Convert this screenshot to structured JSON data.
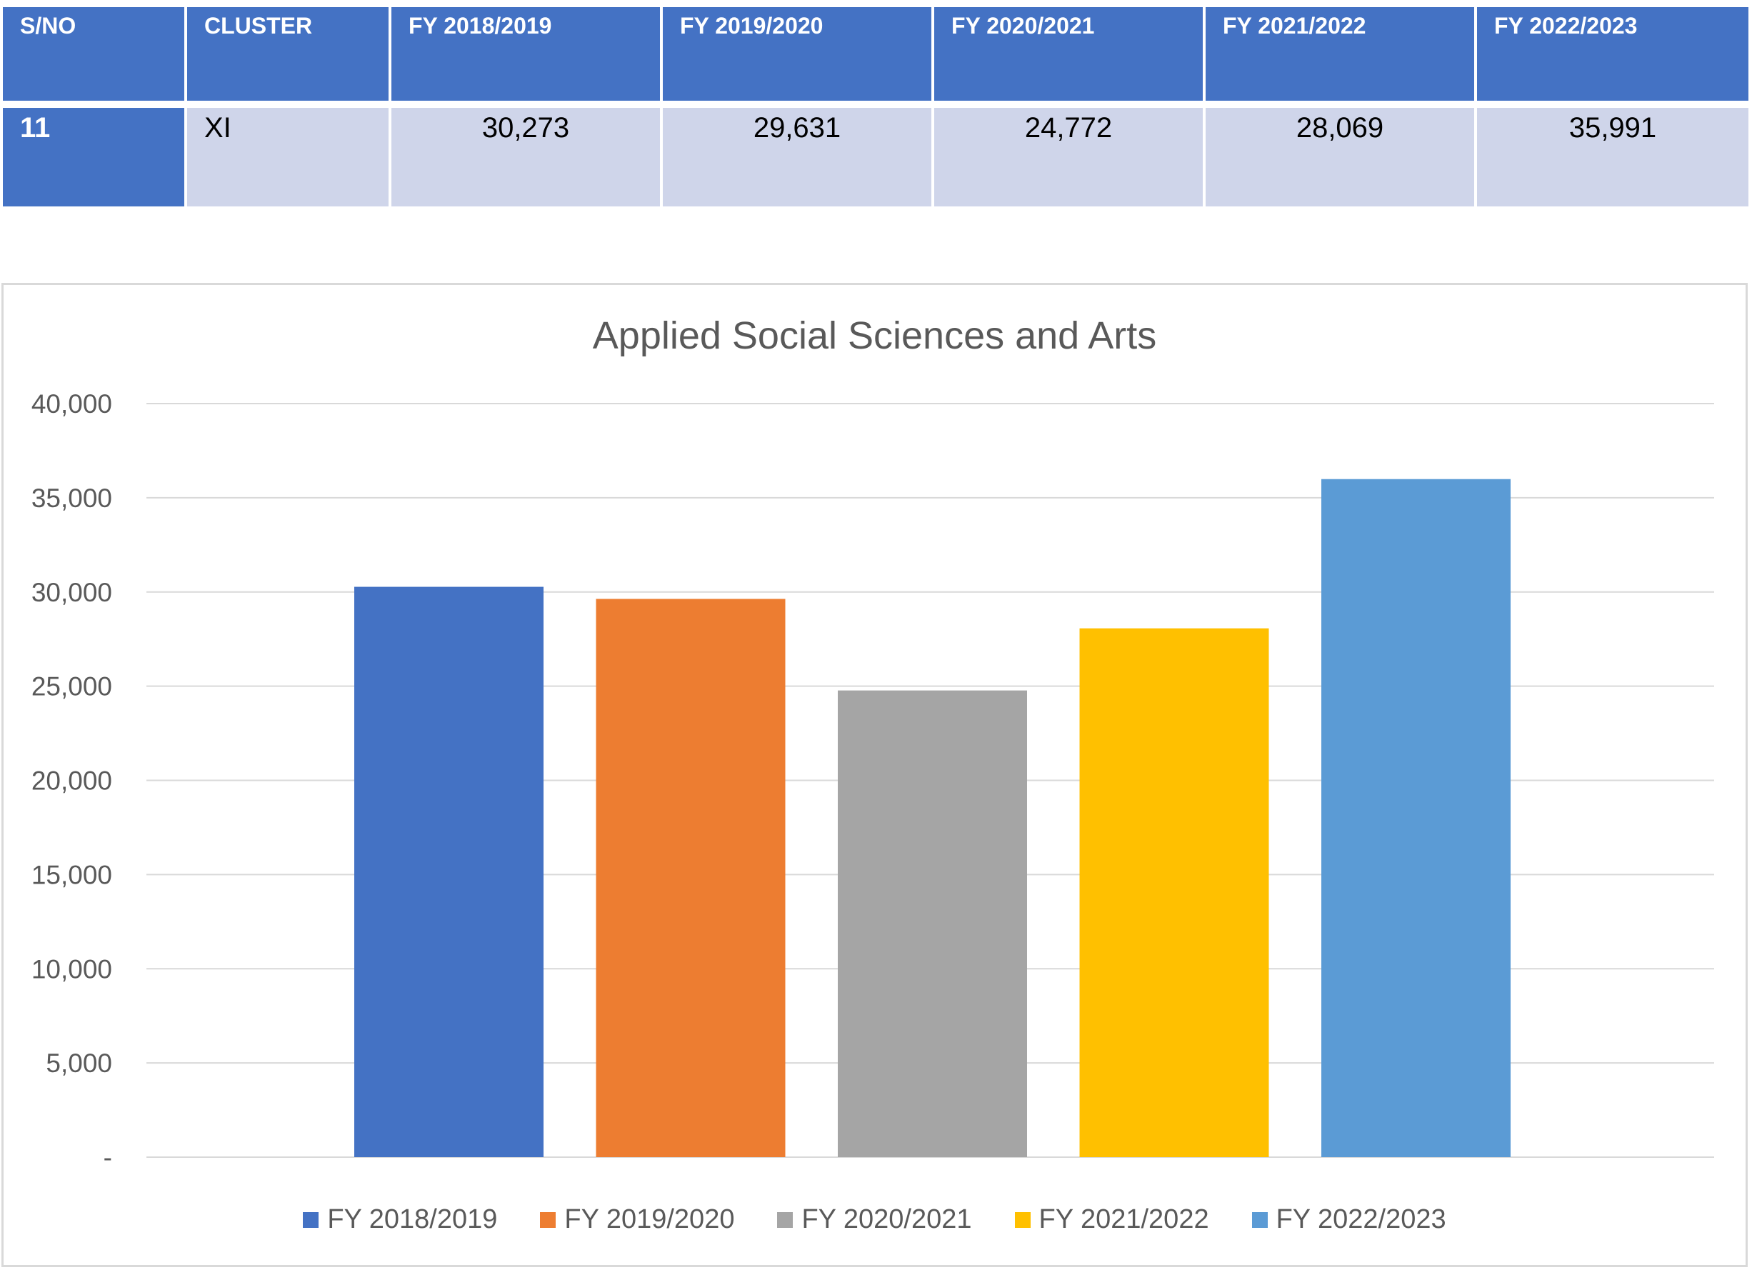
{
  "table": {
    "headers": [
      "S/NO",
      "CLUSTER",
      "FY 2018/2019",
      "FY 2019/2020",
      "FY 2020/2021",
      "FY 2021/2022",
      "FY 2022/2023"
    ],
    "row": {
      "sno": "11",
      "cluster": "XI",
      "values": [
        "30,273",
        "29,631",
        "24,772",
        "28,069",
        "35,991"
      ]
    }
  },
  "colors": {
    "header_bg": "#4472c4",
    "cell_bg": "#cfd5ea"
  },
  "chart_data": {
    "type": "bar",
    "title": "Applied Social Sciences and Arts",
    "series": [
      {
        "name": "FY 2018/2019",
        "value": 30273,
        "color": "#4472c4"
      },
      {
        "name": "FY 2019/2020",
        "value": 29631,
        "color": "#ed7d31"
      },
      {
        "name": "FY 2020/2021",
        "value": 24772,
        "color": "#a5a5a5"
      },
      {
        "name": "FY 2021/2022",
        "value": 28069,
        "color": "#ffc000"
      },
      {
        "name": "FY 2022/2023",
        "value": 35991,
        "color": "#5b9bd5"
      }
    ],
    "ylim": [
      0,
      40000
    ],
    "yticks": [
      0,
      5000,
      10000,
      15000,
      20000,
      25000,
      30000,
      35000,
      40000
    ],
    "ytick_labels": [
      "-",
      "5,000",
      "10,000",
      "15,000",
      "20,000",
      "25,000",
      "30,000",
      "35,000",
      "40,000"
    ],
    "grid": true,
    "legend": "bottom"
  }
}
